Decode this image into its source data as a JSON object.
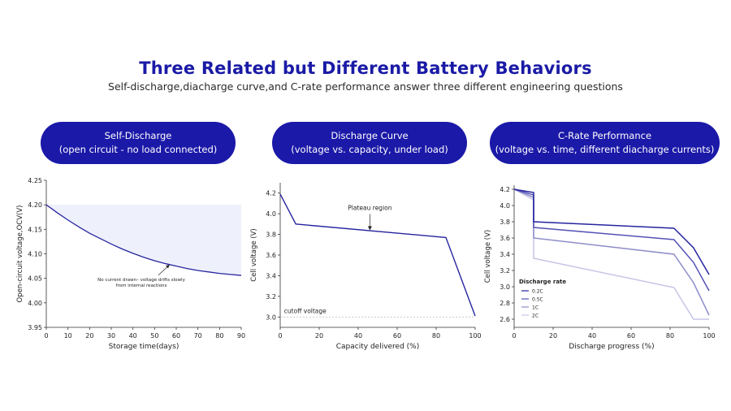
{
  "header": {
    "title": "Three Related but Different Battery Behaviors",
    "subtitle": "Self-discharge,diacharge curve,and C-rate performance answer three different engineering questions"
  },
  "panels": [
    {
      "line1": "Self-Discharge",
      "line2": "(open circuit - no load connected)"
    },
    {
      "line1": "Discharge Curve",
      "line2": "(voltage vs. capacity, under load)"
    },
    {
      "line1": "C-Rate Performance",
      "line2": "(voltage vs. time, different diacharge currents)"
    }
  ],
  "colors": {
    "accent": "#1b19a8",
    "series_2c": "#c6c5e6",
    "series_1c": "#8d8bc9",
    "series_05c": "#5452b5",
    "series_02c": "#27259f",
    "fill": "#eef0fb"
  },
  "chart_data": [
    {
      "type": "line",
      "xlabel": "Storage time(days)",
      "ylabel": "Open-circuit voltage,OCV(V)",
      "xlim": [
        0,
        90
      ],
      "ylim": [
        3.95,
        4.25
      ],
      "xticks": [
        0,
        10,
        20,
        30,
        40,
        50,
        60,
        70,
        80,
        90
      ],
      "yticks": [
        3.95,
        4.0,
        4.05,
        4.1,
        4.15,
        4.2,
        4.25
      ],
      "ytick_decimals": 2,
      "fill_to": 4.2,
      "series": [
        {
          "x": [
            0,
            5,
            10,
            15,
            20,
            25,
            30,
            35,
            40,
            45,
            50,
            55,
            60,
            65,
            70,
            75,
            80,
            85,
            90
          ],
          "values": [
            4.2,
            4.184,
            4.169,
            4.155,
            4.142,
            4.131,
            4.12,
            4.11,
            4.101,
            4.093,
            4.086,
            4.08,
            4.075,
            4.07,
            4.066,
            4.063,
            4.06,
            4.058,
            4.056
          ]
        }
      ],
      "annotation": {
        "lines": [
          "No current drawn– voltage drifts slowly",
          "from internal reactions"
        ],
        "x": 57,
        "y": 4.078
      }
    },
    {
      "type": "line",
      "xlabel": "Capacity delivered (%)",
      "ylabel": "Cell voltage (V)",
      "xlim": [
        0,
        100
      ],
      "ylim": [
        2.9,
        4.3
      ],
      "xticks": [
        0,
        20,
        40,
        60,
        80,
        100
      ],
      "yticks": [
        3.0,
        3.2,
        3.4,
        3.6,
        3.8,
        4.0,
        4.2
      ],
      "ytick_decimals": 1,
      "series": [
        {
          "x": [
            0,
            8,
            85,
            100
          ],
          "values": [
            4.19,
            3.9,
            3.77,
            3.01
          ]
        }
      ],
      "cutoff": {
        "value": 3.0,
        "label": "cutoff voltage"
      },
      "annotation": {
        "label": "Plateau region",
        "x": 46,
        "y": 3.84
      }
    },
    {
      "type": "line",
      "xlabel": "Discharge progress (%)",
      "ylabel": "Cell voltage (V)",
      "xlim": [
        0,
        100
      ],
      "ylim": [
        2.5,
        4.25
      ],
      "xticks": [
        0,
        20,
        40,
        60,
        80,
        100
      ],
      "yticks": [
        2.6,
        2.8,
        3.0,
        3.2,
        3.4,
        3.6,
        3.8,
        4.0,
        4.2
      ],
      "ytick_decimals": 1,
      "legend_title": "Discharge rate",
      "legend_position": "bottom-left",
      "series": [
        {
          "name": "2C",
          "x": [
            0,
            10,
            10,
            82,
            92,
            100
          ],
          "values": [
            4.2,
            4.07,
            3.35,
            2.99,
            2.6,
            2.6
          ]
        },
        {
          "name": "1C",
          "x": [
            0,
            10,
            10,
            82,
            92,
            100
          ],
          "values": [
            4.2,
            4.1,
            3.6,
            3.4,
            3.05,
            2.65
          ]
        },
        {
          "name": "0.5C",
          "x": [
            0,
            10,
            10,
            82,
            92,
            100
          ],
          "values": [
            4.2,
            4.13,
            3.73,
            3.58,
            3.3,
            2.95
          ]
        },
        {
          "name": "0.2C",
          "x": [
            0,
            10,
            10,
            82,
            92,
            100
          ],
          "values": [
            4.2,
            4.16,
            3.8,
            3.72,
            3.48,
            3.15
          ]
        }
      ]
    }
  ]
}
